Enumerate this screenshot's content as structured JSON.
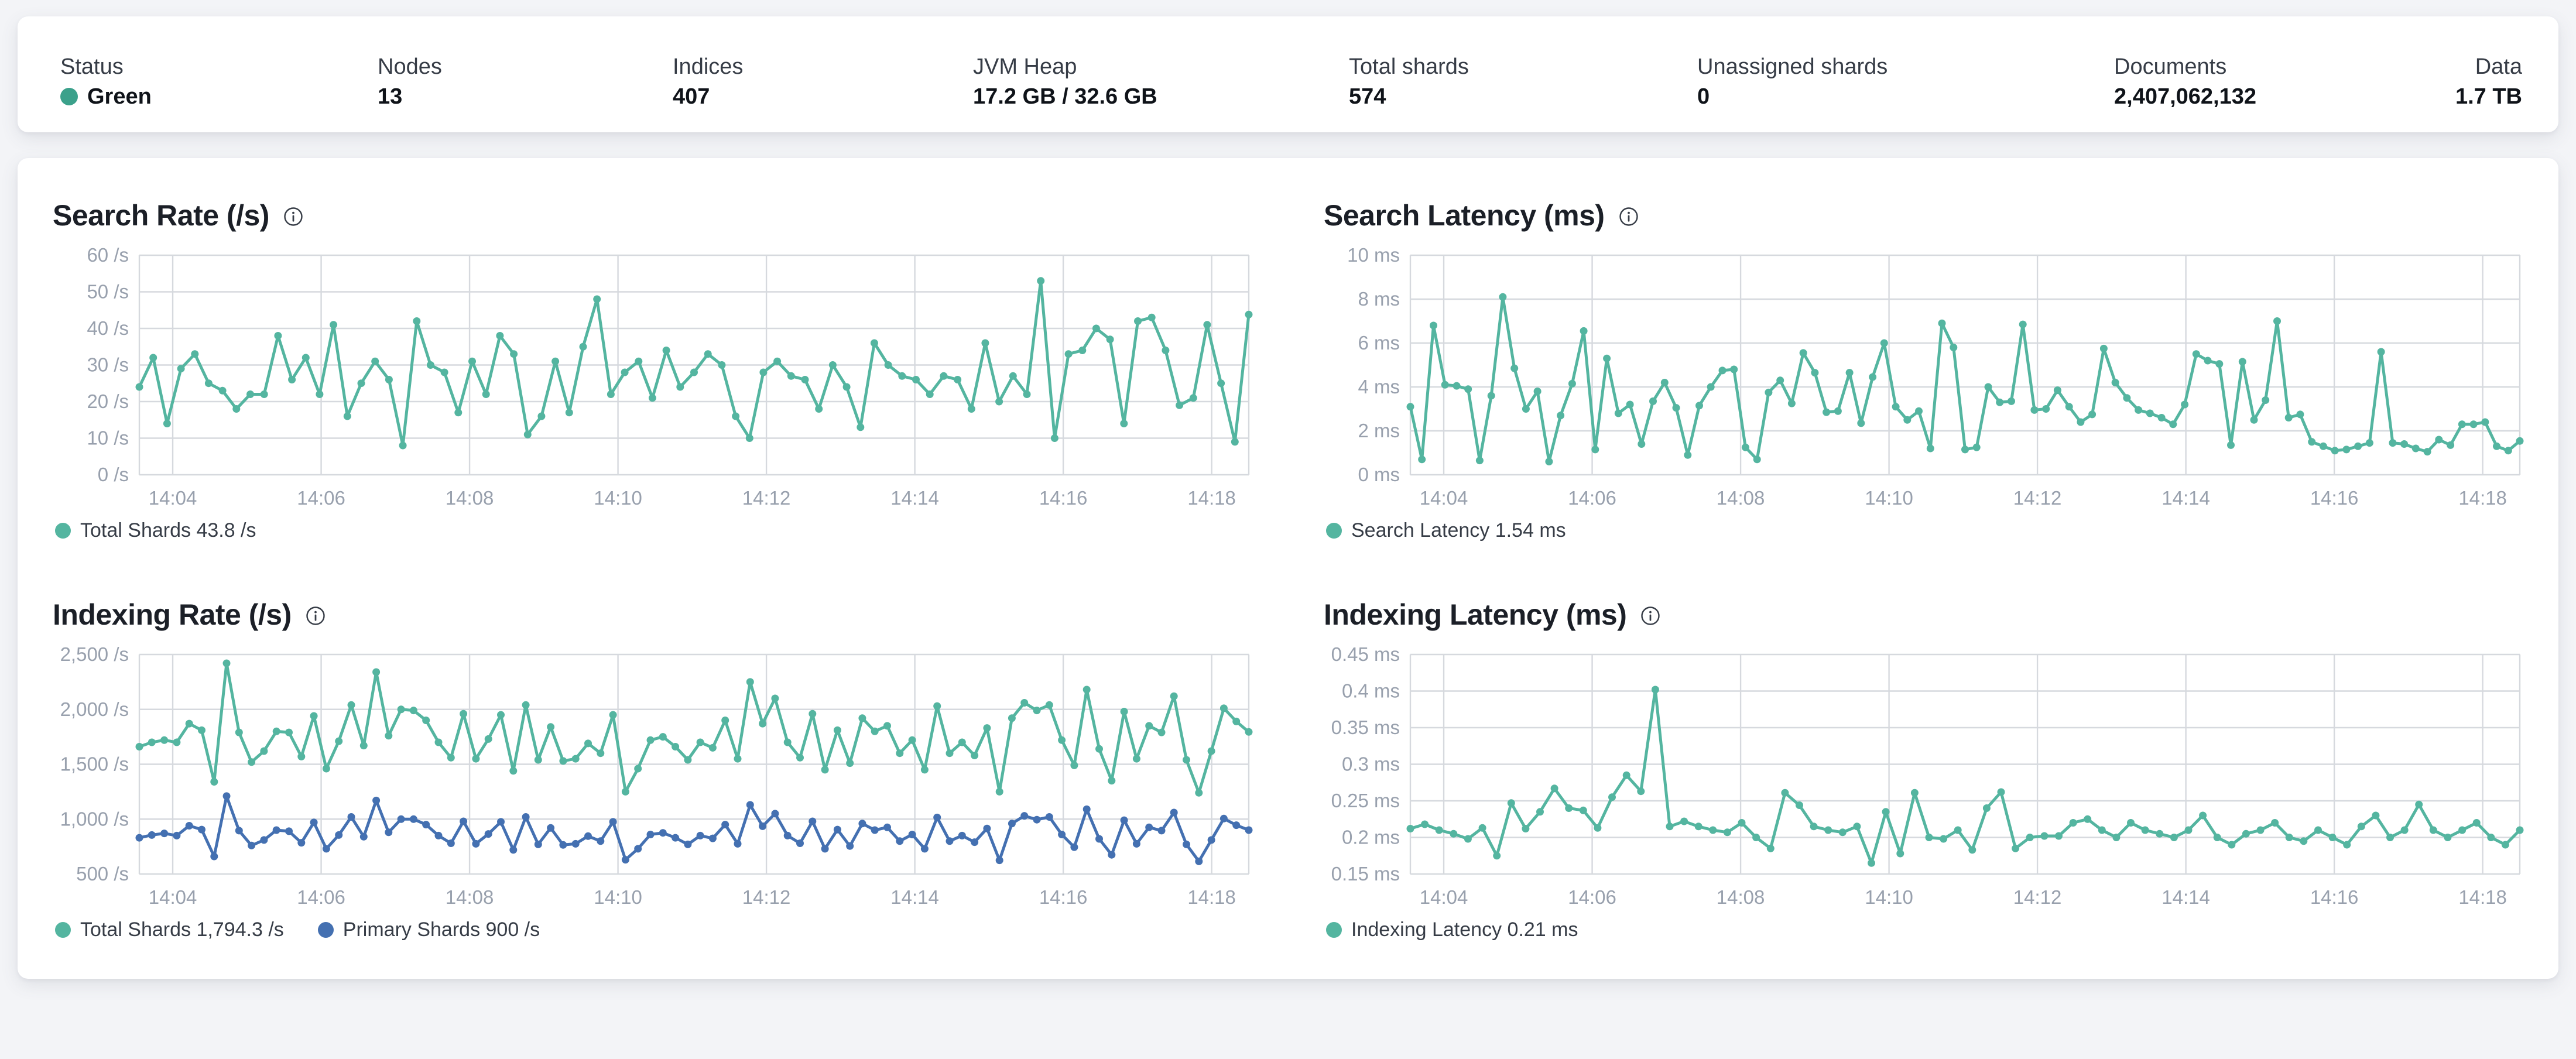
{
  "page": {
    "background": "#f3f4f7",
    "card_background": "#ffffff",
    "grid_color": "#d6d9de",
    "axis_label_color": "#98a0ad"
  },
  "topbar": {
    "stats": [
      {
        "label": "Status",
        "value": "Green",
        "dot_color": "#3ba18b"
      },
      {
        "label": "Nodes",
        "value": "13"
      },
      {
        "label": "Indices",
        "value": "407"
      },
      {
        "label": "JVM Heap",
        "value": "17.2 GB / 32.6 GB"
      },
      {
        "label": "Total shards",
        "value": "574"
      },
      {
        "label": "Unassigned shards",
        "value": "0"
      },
      {
        "label": "Documents",
        "value": "2,407,062,132"
      },
      {
        "label": "Data",
        "value": "1.7 TB"
      }
    ]
  },
  "charts": [
    {
      "id": "search-rate",
      "type": "line",
      "title": "Search Rate (/s)",
      "info_icon": "info-icon",
      "y_min": 0,
      "y_max": 60,
      "y_ticks": [
        {
          "label": "60 /s",
          "value": 60
        },
        {
          "label": "50 /s",
          "value": 50
        },
        {
          "label": "40 /s",
          "value": 40
        },
        {
          "label": "30 /s",
          "value": 30
        },
        {
          "label": "20 /s",
          "value": 20
        },
        {
          "label": "10 /s",
          "value": 10
        },
        {
          "label": "0 /s",
          "value": 0
        }
      ],
      "x_domain": {
        "start": 3.55,
        "end": 18.5
      },
      "x_ticks": [
        {
          "label": "14:04",
          "t": 4
        },
        {
          "label": "14:06",
          "t": 6
        },
        {
          "label": "14:08",
          "t": 8
        },
        {
          "label": "14:10",
          "t": 10
        },
        {
          "label": "14:12",
          "t": 12
        },
        {
          "label": "14:14",
          "t": 14
        },
        {
          "label": "14:16",
          "t": 16
        },
        {
          "label": "14:18",
          "t": 18
        }
      ],
      "series": [
        {
          "name": "Total Shards",
          "color": "#54b5a0",
          "legend": "Total Shards 43.8 /s",
          "current": "43.8 /s",
          "values": [
            24,
            32,
            14,
            29,
            33,
            25,
            23,
            18,
            22,
            22,
            38,
            26,
            32,
            22,
            41,
            16,
            25,
            31,
            26,
            8,
            42,
            30,
            28,
            17,
            31,
            22,
            38,
            33,
            11,
            16,
            31,
            17,
            35,
            48,
            22,
            28,
            31,
            21,
            34,
            24,
            28,
            33,
            30,
            16,
            10,
            28,
            31,
            27,
            26,
            18,
            30,
            24,
            13,
            36,
            30,
            27,
            26,
            22,
            27,
            26,
            18,
            36,
            20,
            27,
            22,
            53,
            10,
            33,
            34,
            40,
            37,
            14,
            42,
            43,
            34,
            19,
            21,
            41,
            25,
            9,
            43.8
          ]
        }
      ]
    },
    {
      "id": "search-latency",
      "type": "line",
      "title": "Search Latency (ms)",
      "info_icon": "info-icon",
      "y_min": 0,
      "y_max": 10,
      "y_ticks": [
        {
          "label": "10 ms",
          "value": 10
        },
        {
          "label": "8 ms",
          "value": 8
        },
        {
          "label": "6 ms",
          "value": 6
        },
        {
          "label": "4 ms",
          "value": 4
        },
        {
          "label": "2 ms",
          "value": 2
        },
        {
          "label": "0 ms",
          "value": 0
        }
      ],
      "x_domain": {
        "start": 3.55,
        "end": 18.5
      },
      "x_ticks": [
        {
          "label": "14:04",
          "t": 4
        },
        {
          "label": "14:06",
          "t": 6
        },
        {
          "label": "14:08",
          "t": 8
        },
        {
          "label": "14:10",
          "t": 10
        },
        {
          "label": "14:12",
          "t": 12
        },
        {
          "label": "14:14",
          "t": 14
        },
        {
          "label": "14:16",
          "t": 16
        },
        {
          "label": "14:18",
          "t": 18
        }
      ],
      "series": [
        {
          "name": "Search Latency",
          "color": "#54b5a0",
          "legend": "Search Latency 1.54 ms",
          "current": "1.54 ms",
          "values": [
            3.1,
            0.7,
            6.8,
            4.1,
            4.05,
            3.9,
            0.65,
            3.6,
            8.1,
            4.85,
            3.0,
            3.8,
            0.6,
            2.7,
            4.15,
            6.55,
            1.15,
            5.3,
            2.8,
            3.2,
            1.4,
            3.35,
            4.2,
            3.05,
            0.9,
            3.15,
            4.0,
            4.75,
            4.8,
            1.25,
            0.7,
            3.75,
            4.3,
            3.25,
            5.55,
            4.65,
            2.85,
            2.9,
            4.65,
            2.35,
            4.45,
            6.0,
            3.1,
            2.5,
            2.9,
            1.2,
            6.9,
            5.8,
            1.15,
            1.25,
            4.0,
            3.3,
            3.35,
            6.85,
            2.95,
            3.0,
            3.85,
            3.1,
            2.4,
            2.75,
            5.75,
            4.2,
            3.5,
            2.95,
            2.8,
            2.6,
            2.3,
            3.2,
            5.5,
            5.2,
            5.05,
            1.35,
            5.15,
            2.5,
            3.4,
            7.0,
            2.6,
            2.75,
            1.5,
            1.3,
            1.1,
            1.15,
            1.3,
            1.45,
            5.6,
            1.45,
            1.4,
            1.2,
            1.05,
            1.6,
            1.35,
            2.3,
            2.3,
            2.4,
            1.3,
            1.1,
            1.54
          ]
        }
      ]
    },
    {
      "id": "indexing-rate",
      "type": "line",
      "title": "Indexing Rate (/s)",
      "info_icon": "info-icon",
      "y_min": 500,
      "y_max": 2500,
      "y_ticks": [
        {
          "label": "2,500 /s",
          "value": 2500
        },
        {
          "label": "2,000 /s",
          "value": 2000
        },
        {
          "label": "1,500 /s",
          "value": 1500
        },
        {
          "label": "1,000 /s",
          "value": 1000
        },
        {
          "label": "500 /s",
          "value": 500
        }
      ],
      "x_domain": {
        "start": 3.55,
        "end": 18.5
      },
      "x_ticks": [
        {
          "label": "14:04",
          "t": 4
        },
        {
          "label": "14:06",
          "t": 6
        },
        {
          "label": "14:08",
          "t": 8
        },
        {
          "label": "14:10",
          "t": 10
        },
        {
          "label": "14:12",
          "t": 12
        },
        {
          "label": "14:14",
          "t": 14
        },
        {
          "label": "14:16",
          "t": 16
        },
        {
          "label": "14:18",
          "t": 18
        }
      ],
      "series": [
        {
          "name": "Total Shards",
          "color": "#54b5a0",
          "legend": "Total Shards 1,794.3 /s",
          "current": "1,794.3 /s",
          "values": [
            1660,
            1700,
            1720,
            1700,
            1870,
            1810,
            1340,
            2420,
            1790,
            1520,
            1620,
            1800,
            1790,
            1570,
            1940,
            1460,
            1710,
            2040,
            1670,
            2340,
            1760,
            2000,
            1990,
            1900,
            1700,
            1560,
            1960,
            1550,
            1730,
            1950,
            1440,
            2040,
            1540,
            1840,
            1530,
            1550,
            1690,
            1600,
            1950,
            1250,
            1460,
            1720,
            1750,
            1660,
            1540,
            1700,
            1650,
            1900,
            1550,
            2250,
            1870,
            2100,
            1700,
            1560,
            1960,
            1450,
            1810,
            1510,
            1920,
            1800,
            1850,
            1600,
            1720,
            1450,
            2030,
            1600,
            1700,
            1580,
            1830,
            1250,
            1920,
            2060,
            1990,
            2040,
            1720,
            1490,
            2180,
            1640,
            1350,
            1980,
            1550,
            1850,
            1790,
            2120,
            1540,
            1240,
            1620,
            2010,
            1890,
            1794.3
          ]
        },
        {
          "name": "Primary Shards",
          "color": "#4470b1",
          "legend": "Primary Shards 900 /s",
          "current": "900 /s",
          "values": [
            830,
            855,
            870,
            850,
            940,
            905,
            660,
            1210,
            895,
            760,
            810,
            900,
            890,
            785,
            970,
            730,
            855,
            1020,
            840,
            1170,
            880,
            1000,
            1000,
            950,
            850,
            780,
            980,
            775,
            865,
            975,
            720,
            1020,
            770,
            920,
            765,
            775,
            845,
            800,
            975,
            630,
            730,
            860,
            875,
            830,
            770,
            850,
            825,
            950,
            775,
            1130,
            935,
            1050,
            850,
            780,
            980,
            730,
            905,
            755,
            960,
            900,
            925,
            800,
            860,
            730,
            1015,
            800,
            850,
            790,
            915,
            625,
            960,
            1030,
            995,
            1020,
            860,
            745,
            1090,
            820,
            675,
            990,
            775,
            925,
            895,
            1060,
            770,
            615,
            810,
            1005,
            945,
            900
          ]
        }
      ]
    },
    {
      "id": "indexing-latency",
      "type": "line",
      "title": "Indexing Latency (ms)",
      "info_icon": "info-icon",
      "y_min": 0.15,
      "y_max": 0.45,
      "y_ticks": [
        {
          "label": "0.45 ms",
          "value": 0.45
        },
        {
          "label": "0.4 ms",
          "value": 0.4
        },
        {
          "label": "0.35 ms",
          "value": 0.35
        },
        {
          "label": "0.3 ms",
          "value": 0.3
        },
        {
          "label": "0.25 ms",
          "value": 0.25
        },
        {
          "label": "0.2 ms",
          "value": 0.2
        },
        {
          "label": "0.15 ms",
          "value": 0.15
        }
      ],
      "x_domain": {
        "start": 3.55,
        "end": 18.5
      },
      "x_ticks": [
        {
          "label": "14:04",
          "t": 4
        },
        {
          "label": "14:06",
          "t": 6
        },
        {
          "label": "14:08",
          "t": 8
        },
        {
          "label": "14:10",
          "t": 10
        },
        {
          "label": "14:12",
          "t": 12
        },
        {
          "label": "14:14",
          "t": 14
        },
        {
          "label": "14:16",
          "t": 16
        },
        {
          "label": "14:18",
          "t": 18
        }
      ],
      "series": [
        {
          "name": "Indexing Latency",
          "color": "#54b5a0",
          "legend": "Indexing Latency 0.21 ms",
          "current": "0.21 ms",
          "values": [
            0.212,
            0.218,
            0.21,
            0.205,
            0.198,
            0.213,
            0.175,
            0.247,
            0.212,
            0.235,
            0.267,
            0.24,
            0.237,
            0.213,
            0.255,
            0.285,
            0.263,
            0.402,
            0.215,
            0.222,
            0.215,
            0.21,
            0.207,
            0.22,
            0.2,
            0.185,
            0.261,
            0.244,
            0.215,
            0.21,
            0.207,
            0.215,
            0.165,
            0.235,
            0.178,
            0.261,
            0.2,
            0.198,
            0.21,
            0.183,
            0.24,
            0.262,
            0.185,
            0.2,
            0.202,
            0.202,
            0.22,
            0.225,
            0.21,
            0.2,
            0.22,
            0.21,
            0.205,
            0.2,
            0.21,
            0.23,
            0.2,
            0.19,
            0.205,
            0.21,
            0.22,
            0.2,
            0.195,
            0.21,
            0.2,
            0.19,
            0.215,
            0.23,
            0.2,
            0.21,
            0.245,
            0.21,
            0.2,
            0.21,
            0.22,
            0.2,
            0.19,
            0.21
          ]
        }
      ]
    }
  ]
}
